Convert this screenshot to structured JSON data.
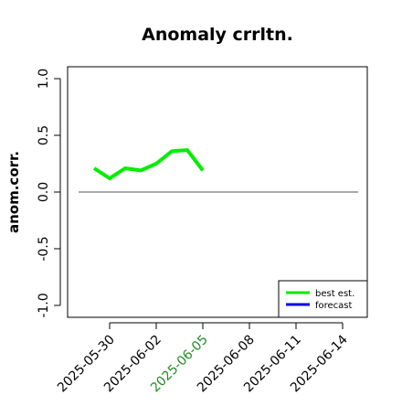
{
  "chart_data": {
    "type": "line",
    "title": "Anomaly crrltn.",
    "xlabel": "",
    "ylabel": "anom.corr.",
    "x_tick_labels": [
      "2025-05-30",
      "2025-06-02",
      "2025-06-05",
      "2025-06-08",
      "2025-06-11",
      "2025-06-14"
    ],
    "x_tick_colors": [
      "#000000",
      "#000000",
      "#228B22",
      "#000000",
      "#000000",
      "#000000"
    ],
    "x_tick_dates": [
      "2025-05-30",
      "2025-06-02",
      "2025-06-05",
      "2025-06-08",
      "2025-06-11",
      "2025-06-14"
    ],
    "xlim": [
      "2025-05-27",
      "2025-06-15"
    ],
    "ylim": [
      -1.05,
      1.05
    ],
    "y_ticks": [
      -1.0,
      -0.5,
      0.0,
      0.5,
      1.0
    ],
    "y_tick_labels": [
      "-1.0",
      "-0.5",
      "0.0",
      "0.5",
      "1.0"
    ],
    "reference_line": {
      "y": 0.0,
      "x_from": "2025-05-28",
      "x_to": "2025-06-15",
      "color": "#555555"
    },
    "series": [
      {
        "name": "best est.",
        "color": "#00ee00",
        "x": [
          "2025-05-29",
          "2025-05-30",
          "2025-05-31",
          "2025-06-01",
          "2025-06-02",
          "2025-06-03",
          "2025-06-04",
          "2025-06-05"
        ],
        "y": [
          0.21,
          0.12,
          0.21,
          0.19,
          0.25,
          0.36,
          0.37,
          0.19
        ]
      },
      {
        "name": "forecast",
        "color": "#0000ee",
        "x": [],
        "y": []
      }
    ],
    "legend": {
      "position": "bottom-right",
      "entries": [
        "best est.",
        "forecast"
      ]
    },
    "grid": false
  }
}
